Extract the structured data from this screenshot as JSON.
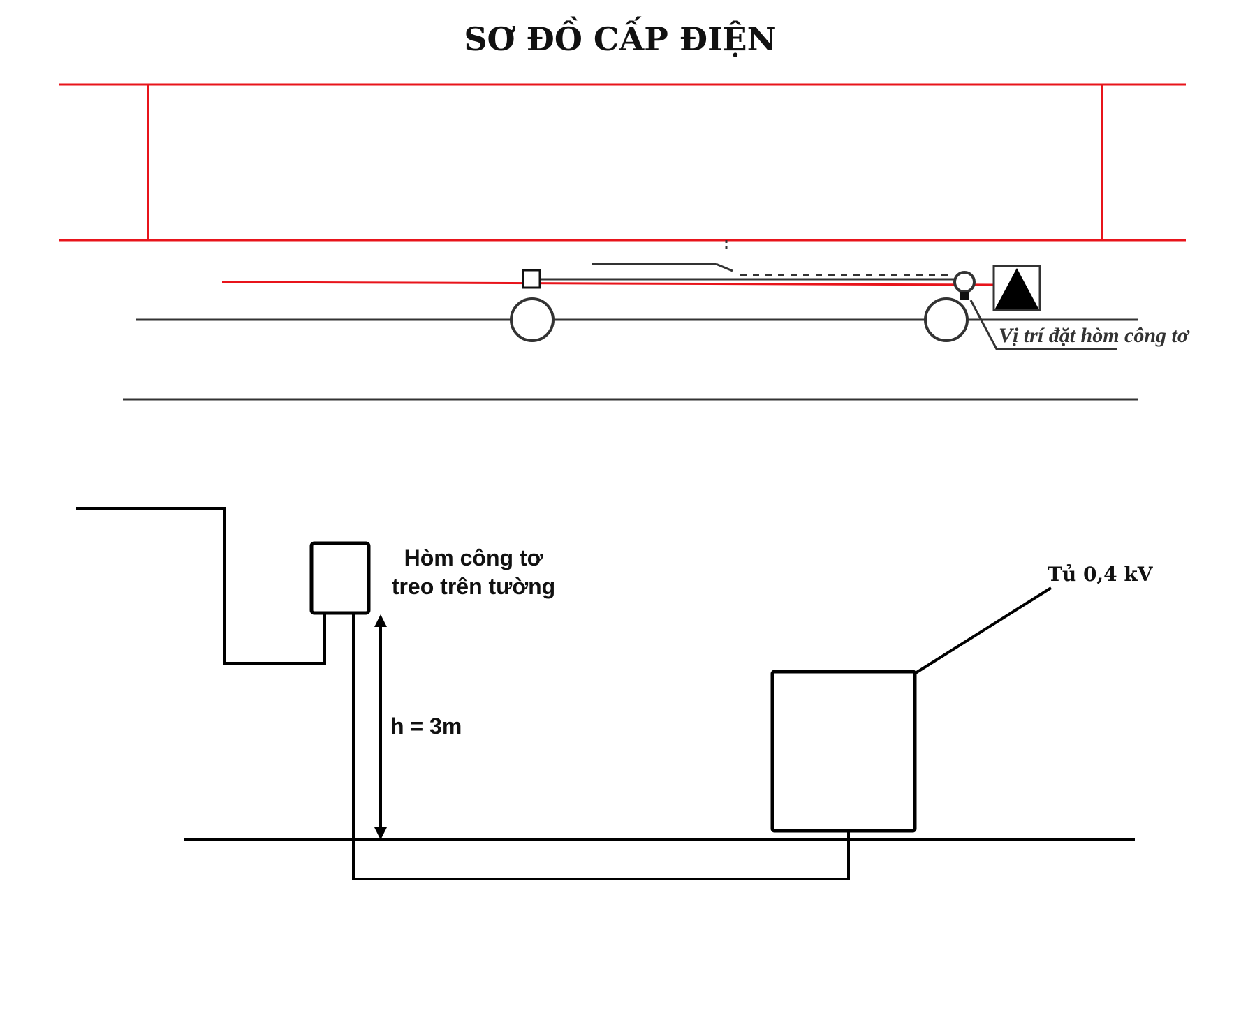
{
  "title": "SƠ ĐỒ CẤP ĐIỆN",
  "labels": {
    "meter_location": "Vị trí đặt hòm công tơ",
    "meter_box_line1": "Hòm công tơ",
    "meter_box_line2": "treo trên tường",
    "height": "h = 3m",
    "cabinet": "Tủ 0,4 kV"
  },
  "colors": {
    "red_line": "#e8141b",
    "dark_line": "#333333",
    "black": "#000000"
  }
}
